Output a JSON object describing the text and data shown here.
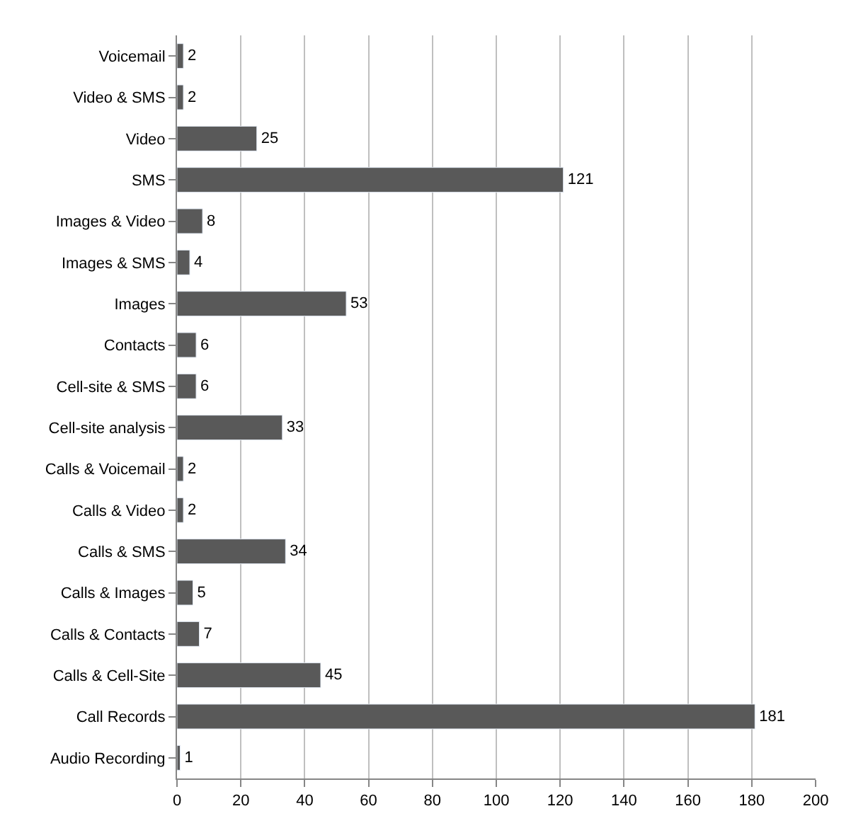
{
  "chart_data": {
    "type": "bar",
    "orientation": "horizontal",
    "categories": [
      "Voicemail",
      "Video & SMS",
      "Video",
      "SMS",
      "Images & Video",
      "Images & SMS",
      "Images",
      "Contacts",
      "Cell-site & SMS",
      "Cell-site analysis",
      "Calls & Voicemail",
      "Calls & Video",
      "Calls & SMS",
      "Calls & Images",
      "Calls & Contacts",
      "Calls & Cell-Site",
      "Call Records",
      "Audio Recording"
    ],
    "values": [
      2,
      2,
      25,
      121,
      8,
      4,
      53,
      6,
      6,
      33,
      2,
      2,
      34,
      5,
      7,
      45,
      181,
      1
    ],
    "color": "#595959",
    "xlim": [
      0,
      200
    ],
    "xticks": [
      0,
      20,
      40,
      60,
      80,
      100,
      120,
      140,
      160,
      180,
      200
    ],
    "grid": "x",
    "data_labels": true
  }
}
